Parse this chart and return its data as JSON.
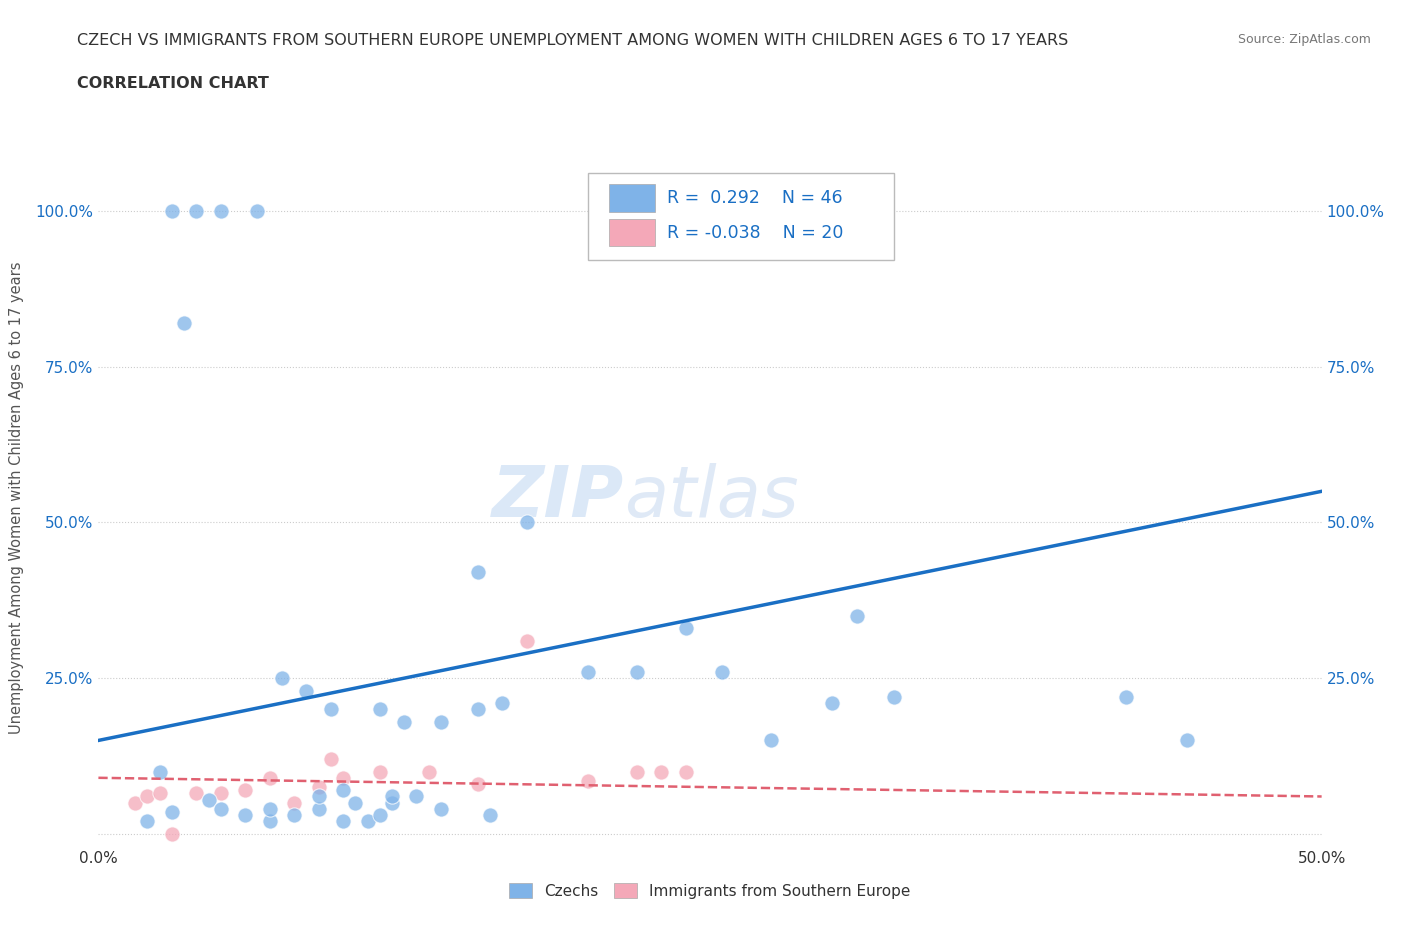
{
  "title_line1": "CZECH VS IMMIGRANTS FROM SOUTHERN EUROPE UNEMPLOYMENT AMONG WOMEN WITH CHILDREN AGES 6 TO 17 YEARS",
  "title_line2": "CORRELATION CHART",
  "source": "Source: ZipAtlas.com",
  "ylabel": "Unemployment Among Women with Children Ages 6 to 17 years",
  "xlim": [
    0.0,
    0.5
  ],
  "ylim": [
    -0.02,
    1.1
  ],
  "ytick_positions": [
    0.0,
    0.25,
    0.5,
    0.75,
    1.0
  ],
  "ytick_labels": [
    "",
    "25.0%",
    "50.0%",
    "75.0%",
    "100.0%"
  ],
  "grid_color": "#cccccc",
  "background_color": "#ffffff",
  "watermark_zip": "ZIP",
  "watermark_atlas": "atlas",
  "czechs_color": "#7fb3e8",
  "immigrants_color": "#f4a8b8",
  "czechs_line_color": "#1a6fc4",
  "immigrants_line_color": "#e06070",
  "R_czech": 0.292,
  "N_czech": 46,
  "R_immigrants": -0.038,
  "N_immigrants": 20,
  "czechs_x": [
    0.025,
    0.03,
    0.04,
    0.05,
    0.065,
    0.07,
    0.08,
    0.09,
    0.1,
    0.105,
    0.11,
    0.115,
    0.12,
    0.035,
    0.045,
    0.06,
    0.075,
    0.085,
    0.095,
    0.115,
    0.125,
    0.13,
    0.14,
    0.155,
    0.165,
    0.02,
    0.03,
    0.05,
    0.07,
    0.09,
    0.1,
    0.12,
    0.14,
    0.16,
    0.175,
    0.2,
    0.22,
    0.24,
    0.255,
    0.3,
    0.31,
    0.325,
    0.275,
    0.42,
    0.445,
    0.155
  ],
  "czechs_y": [
    0.1,
    1.0,
    1.0,
    1.0,
    1.0,
    0.02,
    0.03,
    0.04,
    0.02,
    0.05,
    0.02,
    0.03,
    0.05,
    0.82,
    0.055,
    0.03,
    0.25,
    0.23,
    0.2,
    0.2,
    0.18,
    0.06,
    0.18,
    0.2,
    0.21,
    0.02,
    0.035,
    0.04,
    0.04,
    0.06,
    0.07,
    0.06,
    0.04,
    0.03,
    0.5,
    0.26,
    0.26,
    0.33,
    0.26,
    0.21,
    0.35,
    0.22,
    0.15,
    0.22,
    0.15,
    0.42
  ],
  "immigrants_x": [
    0.015,
    0.02,
    0.025,
    0.03,
    0.04,
    0.05,
    0.06,
    0.07,
    0.08,
    0.09,
    0.095,
    0.1,
    0.115,
    0.135,
    0.155,
    0.175,
    0.2,
    0.22,
    0.23,
    0.24
  ],
  "immigrants_y": [
    0.05,
    0.06,
    0.065,
    0.0,
    0.065,
    0.065,
    0.07,
    0.09,
    0.05,
    0.075,
    0.12,
    0.09,
    0.1,
    0.1,
    0.08,
    0.31,
    0.085,
    0.1,
    0.1,
    0.1
  ]
}
